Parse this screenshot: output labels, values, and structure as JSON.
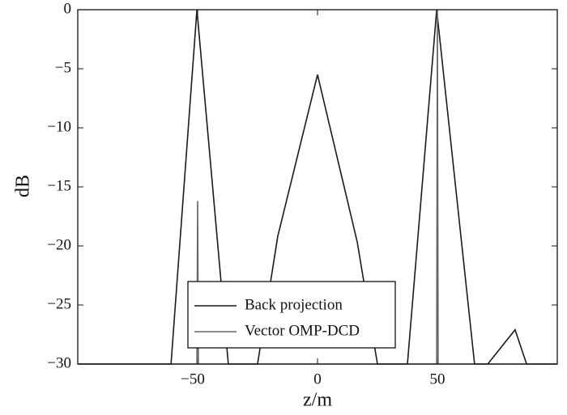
{
  "chart_data": {
    "type": "line",
    "xlabel": "z/m",
    "ylabel": "dB",
    "xlim": [
      -100,
      100
    ],
    "ylim": [
      -30,
      0
    ],
    "xticks": [
      {
        "value": -50,
        "label": "−50"
      },
      0,
      50
    ],
    "yticks": [
      0,
      {
        "value": -5,
        "label": "−5"
      },
      {
        "value": -10,
        "label": "−10"
      },
      {
        "value": -15,
        "label": "−15"
      },
      {
        "value": -20,
        "label": "−20"
      },
      {
        "value": -25,
        "label": "−25"
      },
      {
        "value": -30,
        "label": "−30"
      }
    ],
    "legend": "lower-center",
    "series": [
      {
        "name": "Back projection",
        "color": "#1a1a1a",
        "x": [
          -100,
          -61.1,
          -50.3,
          -37.2,
          -25,
          -16.6,
          0,
          16.6,
          25,
          37.5,
          49.7,
          65.5,
          71,
          82.4,
          87.2,
          100
        ],
        "values": [
          -30,
          -30,
          0,
          -30,
          -30,
          -19.2,
          -5.5,
          -19.7,
          -30,
          -30,
          0,
          -30,
          -30,
          -27.1,
          -30,
          -30
        ]
      },
      {
        "name": "Vector OMP-DCD",
        "color": "#666666",
        "x": [
          -100,
          -50.3,
          -50,
          -49.7,
          49.7,
          50,
          50.3,
          100
        ],
        "values": [
          -30,
          -30,
          -16.2,
          -30,
          -30,
          0,
          -30,
          -30
        ]
      }
    ]
  }
}
